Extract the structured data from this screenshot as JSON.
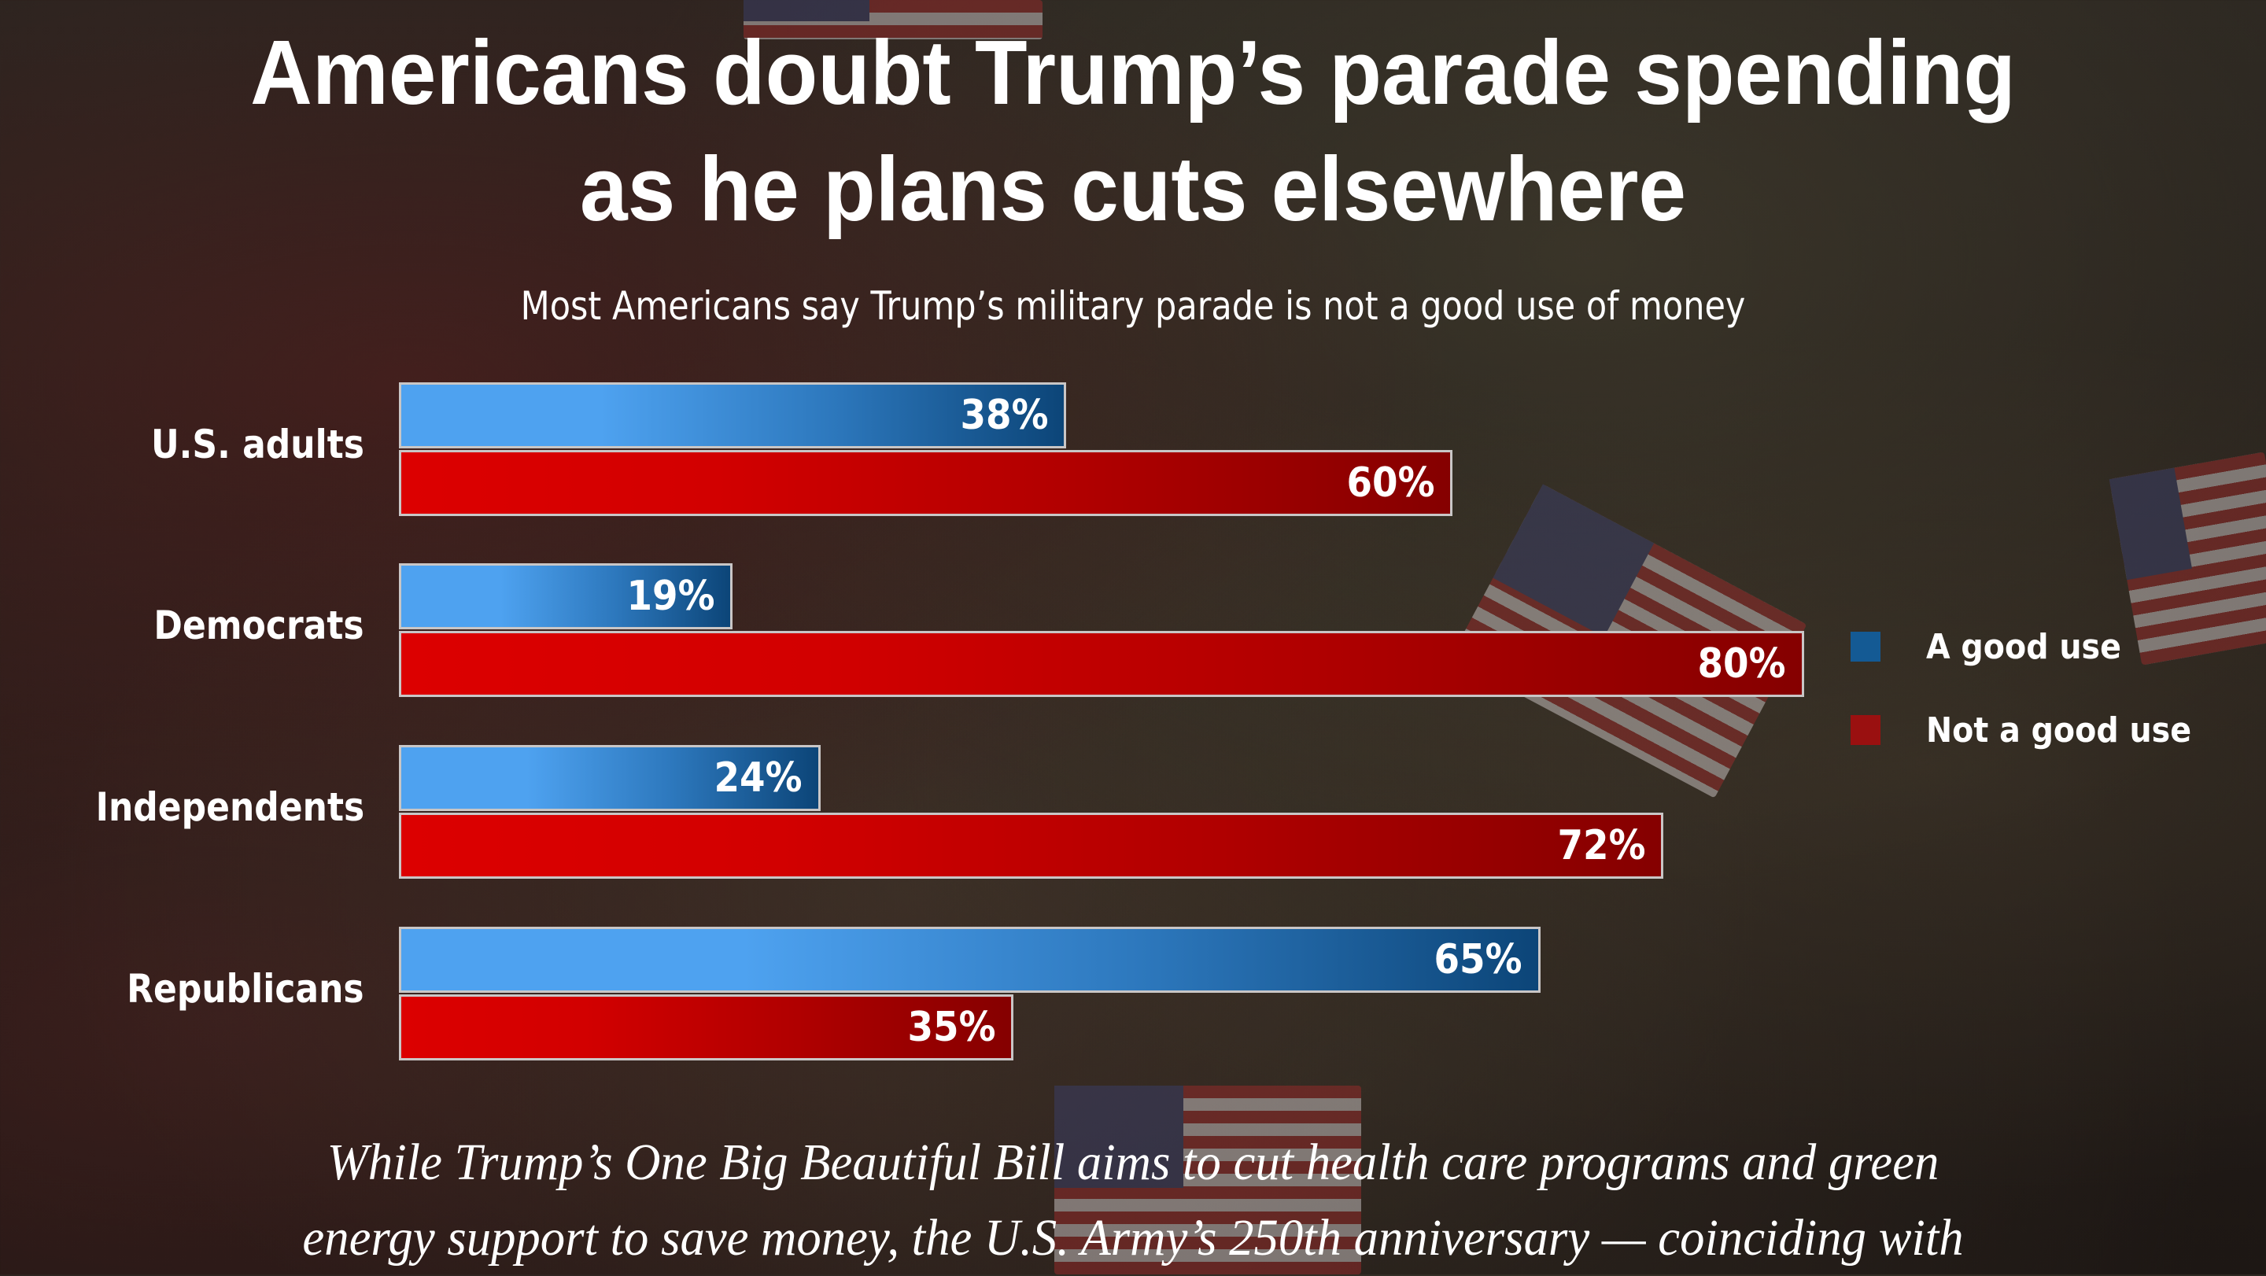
{
  "title_lines": [
    "Americans doubt Trump’s parade spending",
    "as he plans cuts elsewhere"
  ],
  "subtitle": "Most Americans say Trump’s military parade is not a good use of money",
  "caption_lines": [
    "While Trump’s One Big Beautiful Bill aims to cut health care programs and green",
    "energy support to save money, the U.S. Army’s 250th anniversary — coinciding with"
  ],
  "colors": {
    "good": "#145a94",
    "not_good": "#9a1010"
  },
  "chart_data": {
    "type": "bar",
    "orientation": "horizontal",
    "title": "Most Americans say Trump’s military parade is not a good use of money",
    "categories": [
      "U.S. adults",
      "Democrats",
      "Independents",
      "Republicans"
    ],
    "series": [
      {
        "name": "A good use",
        "key": "good",
        "values": [
          38,
          19,
          24,
          65
        ],
        "labels": [
          "38%",
          "19%",
          "24%",
          "65%"
        ]
      },
      {
        "name": "Not a good use",
        "key": "bad",
        "values": [
          60,
          80,
          72,
          35
        ],
        "labels": [
          "60%",
          "80%",
          "72%",
          "35%"
        ]
      }
    ],
    "xlabel": "",
    "ylabel": "",
    "xlim": [
      0,
      100
    ],
    "unit": "%",
    "grid": false,
    "legend_position": "right"
  }
}
